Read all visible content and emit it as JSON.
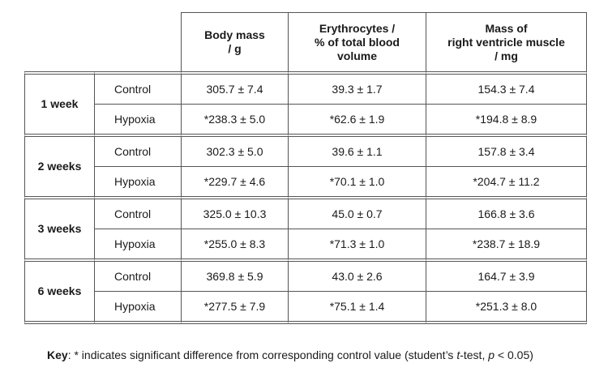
{
  "table": {
    "headers": [
      {
        "lines": [
          "Body mass",
          "/ g"
        ]
      },
      {
        "lines": [
          "Erythrocytes /",
          "% of total blood",
          "volume"
        ]
      },
      {
        "lines": [
          "Mass of",
          "right ventricle muscle",
          "/ mg"
        ]
      }
    ],
    "groups": [
      {
        "label": "1 week",
        "rows": [
          {
            "condition": "Control",
            "values": [
              "305.7 ± 7.4",
              "39.3 ± 1.7",
              "154.3 ± 7.4"
            ]
          },
          {
            "condition": "Hypoxia",
            "values": [
              "*238.3 ± 5.0",
              "*62.6 ± 1.9",
              "*194.8 ± 8.9"
            ]
          }
        ]
      },
      {
        "label": "2 weeks",
        "rows": [
          {
            "condition": "Control",
            "values": [
              "302.3 ± 5.0",
              "39.6 ± 1.1",
              "157.8 ± 3.4"
            ]
          },
          {
            "condition": "Hypoxia",
            "values": [
              "*229.7 ± 4.6",
              "*70.1 ± 1.0",
              "*204.7 ± 11.2"
            ]
          }
        ]
      },
      {
        "label": "3 weeks",
        "rows": [
          {
            "condition": "Control",
            "values": [
              "325.0 ± 10.3",
              "45.0 ± 0.7",
              "166.8 ± 3.6"
            ]
          },
          {
            "condition": "Hypoxia",
            "values": [
              "*255.0 ± 8.3",
              "*71.3 ± 1.0",
              "*238.7 ± 18.9"
            ]
          }
        ]
      },
      {
        "label": "6 weeks",
        "rows": [
          {
            "condition": "Control",
            "values": [
              "369.8 ± 5.9",
              "43.0 ± 2.6",
              "164.7 ± 3.9"
            ]
          },
          {
            "condition": "Hypoxia",
            "values": [
              "*277.5 ± 7.9",
              "*75.1 ± 1.4",
              "*251.3 ± 8.0"
            ]
          }
        ]
      }
    ]
  },
  "key": {
    "label": "Key",
    "text_before": ":  *  indicates significant difference from corresponding control value (student’s ",
    "test_name": "t",
    "text_middle": "-test, ",
    "p_symbol": "p",
    "text_after": " < 0.05)"
  }
}
